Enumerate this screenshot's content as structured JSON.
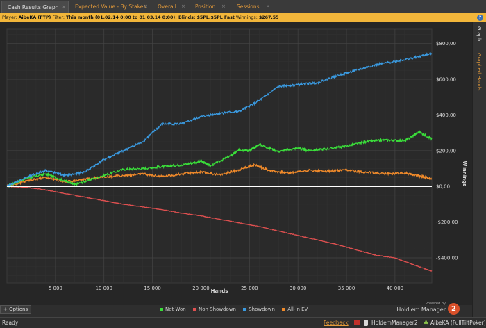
{
  "tabs": [
    {
      "label": "Cash Results Graph",
      "active": true
    },
    {
      "label": "Expected Value - By Stakes",
      "active": false
    },
    {
      "label": "Overall",
      "active": false
    },
    {
      "label": "Position",
      "active": false
    },
    {
      "label": "Sessions",
      "active": false
    }
  ],
  "tab_close_glyph": "×",
  "filter": {
    "player_label": "Player:",
    "player_value": "AibeKA (FTP)",
    "filter_label": "Filter:",
    "filter_value": "This month (01.02.14 0:00 to 01.03.14 0:00); Blinds: $5PL,$5PL Fast",
    "winnings_label": "Winnings:",
    "winnings_value": "$267,55"
  },
  "help_icon": "?",
  "side_tabs": {
    "graph": "Graph",
    "graphed_hands": "Graphed Hands"
  },
  "options_label": "Options",
  "powered_by": "Powered by",
  "brand": "Hold'em Manager",
  "brand_version": "2",
  "status": {
    "ready": "Ready",
    "feedback": "Feedback",
    "database": "HoldemManager2",
    "player": "AibeKA (FullTiltPoker)"
  },
  "colors": {
    "net_won": "#3adf3a",
    "non_showdown": "#e05050",
    "showdown": "#3a9ae0",
    "all_in_ev": "#f08a2a",
    "zero_line": "#ffffff",
    "accent": "#f2b63a"
  },
  "chart_data": {
    "type": "line",
    "xlabel": "Hands",
    "ylabel": "Winnings",
    "xlim": [
      0,
      43800
    ],
    "ylim": [
      -540,
      880
    ],
    "x_ticks": [
      5000,
      10000,
      15000,
      20000,
      25000,
      30000,
      35000,
      40000
    ],
    "x_tick_labels": [
      "5 000",
      "10 000",
      "15 000",
      "20 000",
      "25 000",
      "30 000",
      "35 000",
      "40 000"
    ],
    "y_ticks": [
      800,
      600,
      400,
      200,
      0,
      -200,
      -400
    ],
    "y_tick_labels": [
      "$800,00",
      "$600,00",
      "$400,00",
      "$200,00",
      "$0,00",
      "-$200,00",
      "-$400,00"
    ],
    "grid": true,
    "legend_position": "bottom",
    "series": [
      {
        "name": "Net Won",
        "color_key": "net_won",
        "x": [
          0,
          2000,
          4000,
          6000,
          7000,
          9000,
          12000,
          14000,
          16000,
          18000,
          20000,
          21000,
          23000,
          24000,
          25000,
          26000,
          28000,
          30000,
          31000,
          33000,
          35000,
          37000,
          39000,
          41000,
          42500,
          43800
        ],
        "y": [
          0,
          45,
          70,
          30,
          10,
          45,
          95,
          100,
          110,
          120,
          140,
          115,
          170,
          205,
          200,
          235,
          195,
          215,
          200,
          210,
          225,
          250,
          260,
          255,
          305,
          265
        ]
      },
      {
        "name": "Non Showdown",
        "color_key": "non_showdown",
        "x": [
          0,
          2000,
          4000,
          6000,
          8000,
          10000,
          12000,
          14000,
          16000,
          18000,
          20000,
          22000,
          24000,
          26000,
          28000,
          30000,
          32000,
          34000,
          36000,
          38000,
          40000,
          42000,
          43800
        ],
        "y": [
          0,
          -5,
          -20,
          -40,
          -60,
          -80,
          -100,
          -115,
          -130,
          -150,
          -165,
          -185,
          -205,
          -225,
          -250,
          -275,
          -300,
          -325,
          -355,
          -385,
          -400,
          -440,
          -475
        ]
      },
      {
        "name": "Showdown",
        "color_key": "showdown",
        "x": [
          0,
          2000,
          4000,
          6000,
          8000,
          10000,
          12000,
          14000,
          16000,
          18000,
          20000,
          22000,
          24000,
          26000,
          28000,
          30000,
          32000,
          34000,
          36000,
          38000,
          40000,
          42000,
          43800
        ],
        "y": [
          0,
          50,
          90,
          60,
          80,
          150,
          200,
          250,
          350,
          350,
          390,
          410,
          420,
          480,
          560,
          570,
          580,
          620,
          650,
          680,
          700,
          720,
          745
        ]
      },
      {
        "name": "All-In EV",
        "color_key": "all_in_ev",
        "x": [
          0,
          2000,
          4000,
          6000,
          8000,
          10000,
          12000,
          14000,
          16000,
          18000,
          20000,
          22000,
          24000,
          25500,
          27000,
          29000,
          31000,
          33000,
          35000,
          37000,
          39000,
          41000,
          42500,
          43800
        ],
        "y": [
          0,
          30,
          50,
          25,
          40,
          55,
          60,
          70,
          55,
          70,
          80,
          65,
          95,
          120,
          90,
          75,
          90,
          85,
          90,
          80,
          70,
          75,
          60,
          40
        ]
      }
    ]
  }
}
